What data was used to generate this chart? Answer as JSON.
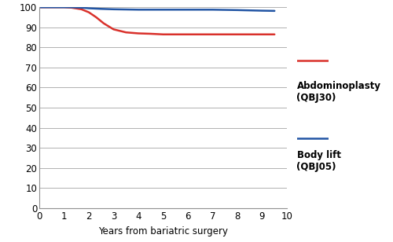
{
  "red_x": [
    0,
    1.0,
    1.3,
    1.7,
    2.0,
    2.3,
    2.6,
    3.0,
    3.5,
    4.0,
    4.5,
    5.0,
    6.0,
    7.0,
    8.0,
    9.0,
    9.5
  ],
  "red_y": [
    100,
    100,
    99.8,
    99.0,
    97.5,
    95.0,
    92.0,
    89.0,
    87.5,
    87.0,
    86.8,
    86.5,
    86.5,
    86.5,
    86.5,
    86.5,
    86.5
  ],
  "blue_x": [
    0,
    1.3,
    1.7,
    2.0,
    2.5,
    3.0,
    4.0,
    5.0,
    6.0,
    7.0,
    8.0,
    9.0,
    9.5
  ],
  "blue_y": [
    100,
    100,
    99.8,
    99.5,
    99.2,
    99.0,
    98.8,
    98.8,
    98.8,
    98.8,
    98.6,
    98.3,
    98.2
  ],
  "red_color": "#d9312b",
  "blue_color": "#2255a4",
  "xlabel": "Years from bariatric surgery",
  "xlim": [
    0,
    10
  ],
  "ylim": [
    0,
    100
  ],
  "xticks": [
    0,
    1,
    2,
    3,
    4,
    5,
    6,
    7,
    8,
    9,
    10
  ],
  "yticks": [
    0,
    10,
    20,
    30,
    40,
    50,
    60,
    70,
    80,
    90,
    100
  ],
  "legend_label1": "Abdominoplasty\n(QBJ30)",
  "legend_label2": "Body lift\n(QBJ05)",
  "linewidth": 1.8,
  "grid_color": "#b0b0b0",
  "background_color": "#ffffff",
  "font_size": 8.5,
  "xlabel_fontsize": 8.5
}
